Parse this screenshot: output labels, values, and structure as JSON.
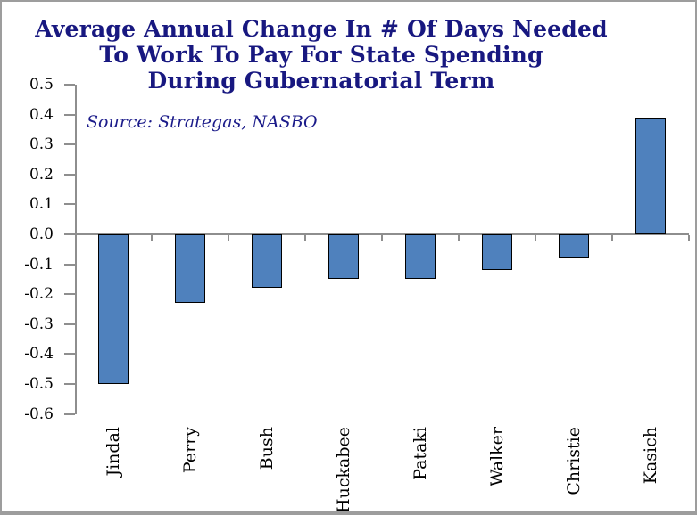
{
  "title": {
    "lines": [
      "Average Annual Change In # Of Days Needed",
      "To Work To Pay For State Spending",
      "During Gubernatorial Term"
    ]
  },
  "chart_data": {
    "type": "bar",
    "title": "Average Annual Change In # Of Days Needed To Work To Pay For State Spending During Gubernatorial Term",
    "annotation": "Source: Strategas, NASBO",
    "categories": [
      "Jindal",
      "Perry",
      "Bush",
      "Huckabee",
      "Pataki",
      "Walker",
      "Christie",
      "Kasich"
    ],
    "values": [
      -0.5,
      -0.23,
      -0.18,
      -0.15,
      -0.15,
      -0.12,
      -0.08,
      0.39
    ],
    "xlabel": "",
    "ylabel": "",
    "ylim": [
      -0.6,
      0.5
    ],
    "ytick_labels": [
      "0.5",
      "0.4",
      "0.3",
      "0.2",
      "0.1",
      "0.0",
      "-0.1",
      "-0.2",
      "-0.3",
      "-0.4",
      "-0.5",
      "-0.6"
    ],
    "grid": false,
    "legend": false,
    "bar_fill": "#4F81BD",
    "bar_border": "#000000"
  },
  "colors": {
    "title_text": "#181880",
    "source_text": "#1B1B8A",
    "axis_line": "#8E8E8E",
    "frame_border": "#9D9D9D",
    "background": "#FFFFFF"
  }
}
